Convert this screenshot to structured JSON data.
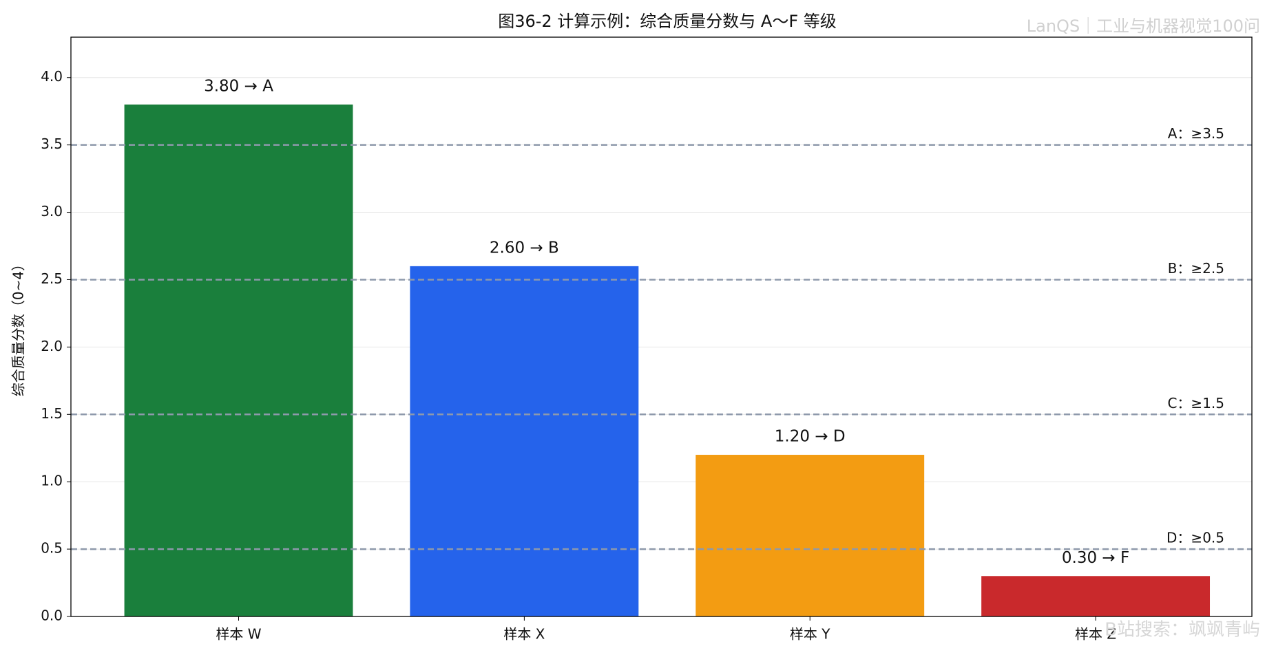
{
  "chart_data": {
    "type": "bar",
    "title": "图36-2 计算示例：综合质量分数与 A～F 等级",
    "ylabel": "综合质量分数（0~4）",
    "categories": [
      "样本 W",
      "样本 X",
      "样本 Y",
      "样本 Z"
    ],
    "values": [
      3.8,
      2.6,
      1.2,
      0.3
    ],
    "value_labels": [
      "3.80 → A",
      "2.60 → B",
      "1.20 → D",
      "0.30 → F"
    ],
    "colors": [
      "#1a7f3c",
      "#2563eb",
      "#f39c12",
      "#c9292c"
    ],
    "ylim": [
      0,
      4.3
    ],
    "yticks": [
      {
        "value": 0,
        "label": "0.0"
      },
      0.5,
      {
        "value": 1,
        "label": "1.0"
      },
      1.5,
      {
        "value": 2,
        "label": "2.0"
      },
      2.5,
      {
        "value": 3,
        "label": "3.0"
      },
      3.5,
      {
        "value": 4,
        "label": "4.0"
      }
    ],
    "grid": true,
    "reference_lines": [
      {
        "value": 3.5,
        "label": "A：≥3.5"
      },
      {
        "value": 2.5,
        "label": "B：≥2.5"
      },
      {
        "value": 1.5,
        "label": "C：≥1.5"
      },
      {
        "value": 0.5,
        "label": "D：≥0.5"
      }
    ],
    "reference_color": "#8e99ab",
    "watermarks": [
      "LanQS｜工业与机器视觉100问",
      "B站搜索：飒飒青屿"
    ]
  }
}
